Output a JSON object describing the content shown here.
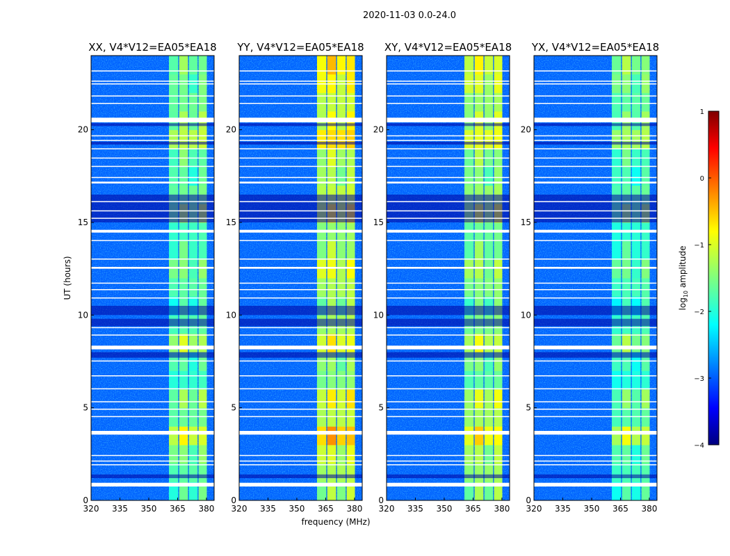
{
  "chart_data": {
    "type": "heatmap",
    "title": "2020-11-03 0.0-24.0",
    "xlabel": "frequency (MHz)",
    "ylabel": "UT (hours)",
    "xlim": [
      320,
      384
    ],
    "ylim": [
      0,
      24
    ],
    "xticks": [
      320,
      335,
      350,
      365,
      380
    ],
    "yticks": [
      0,
      5,
      10,
      15,
      20
    ],
    "colorbar": {
      "label_main": "log",
      "label_sub": "10",
      "label_rest": " amplitude",
      "range": [
        -4,
        1
      ],
      "ticks": [
        1,
        0,
        -1,
        -2,
        -3,
        -4
      ],
      "colormap": "jet"
    },
    "background_level": -2.9,
    "sub_bands_mhz": [
      [
        360.5,
        365.3
      ],
      [
        365.8,
        370.4
      ],
      [
        370.9,
        375.4
      ],
      [
        375.9,
        380.2
      ]
    ],
    "flagged_hours": [
      [
        0.75,
        0.95
      ],
      [
        1.9,
        1.95
      ],
      [
        2.1,
        2.15
      ],
      [
        2.4,
        2.45
      ],
      [
        3.55,
        3.75
      ],
      [
        4.5,
        4.55
      ],
      [
        4.9,
        4.95
      ],
      [
        5.3,
        5.35
      ],
      [
        6.0,
        6.05
      ],
      [
        6.7,
        6.75
      ],
      [
        7.5,
        7.55
      ],
      [
        8.15,
        8.35
      ],
      [
        8.9,
        8.95
      ],
      [
        9.3,
        9.35
      ],
      [
        10.9,
        10.95
      ],
      [
        11.35,
        11.4
      ],
      [
        11.7,
        11.75
      ],
      [
        12.5,
        12.6
      ],
      [
        13.0,
        13.05
      ],
      [
        14.0,
        14.05
      ],
      [
        14.45,
        14.6
      ],
      [
        15.2,
        15.25
      ],
      [
        15.6,
        15.65
      ],
      [
        16.1,
        16.15
      ],
      [
        17.1,
        17.2
      ],
      [
        17.4,
        17.45
      ],
      [
        18.0,
        18.05
      ],
      [
        18.45,
        18.5
      ],
      [
        18.95,
        19.0
      ],
      [
        19.4,
        19.45
      ],
      [
        19.65,
        19.7
      ],
      [
        20.4,
        20.65
      ],
      [
        21.4,
        21.45
      ],
      [
        21.8,
        21.85
      ],
      [
        22.45,
        22.5
      ],
      [
        22.6,
        22.65
      ],
      [
        23.15,
        23.2
      ]
    ],
    "dark_hours": [
      [
        1.2,
        1.4
      ],
      [
        7.7,
        8.0
      ],
      [
        9.4,
        9.8
      ],
      [
        10.0,
        10.5
      ],
      [
        15.0,
        16.5
      ],
      [
        19.2,
        19.35
      ],
      [
        20.2,
        20.35
      ]
    ],
    "panels": [
      {
        "title": "XX, V4*V12=EA05*EA18",
        "band_levels": [
          -1.8,
          -1.7,
          -1.6,
          -1.1,
          -1.7,
          -1.5,
          -1.9,
          -1.8,
          -1.3,
          -1.8,
          -1.9,
          -1.7,
          -1.6,
          -1.8,
          -1.9,
          -1.4,
          -1.6,
          -1.8,
          -1.7,
          -1.3,
          -1.5,
          -1.6,
          -1.7,
          -1.6
        ]
      },
      {
        "title": "YY, V4*V12=EA05*EA18",
        "band_levels": [
          -1.4,
          -1.3,
          -1.2,
          -0.6,
          -1.3,
          -1.0,
          -1.5,
          -1.5,
          -1.0,
          -1.4,
          -1.5,
          -1.3,
          -1.1,
          -1.4,
          -1.5,
          -1.0,
          -1.2,
          -1.4,
          -1.3,
          -0.8,
          -1.1,
          -1.2,
          -1.0,
          -0.8
        ]
      },
      {
        "title": "XY, V4*V12=EA05*EA18",
        "band_levels": [
          -1.5,
          -1.4,
          -1.4,
          -0.9,
          -1.4,
          -1.2,
          -1.7,
          -1.6,
          -1.2,
          -1.6,
          -1.7,
          -1.5,
          -1.4,
          -1.6,
          -1.7,
          -1.2,
          -1.4,
          -1.6,
          -1.5,
          -1.1,
          -1.3,
          -1.4,
          -1.2,
          -1.1
        ]
      },
      {
        "title": "YX, V4*V12=EA05*EA18",
        "band_levels": [
          -1.9,
          -1.8,
          -1.8,
          -1.2,
          -1.8,
          -1.6,
          -2.0,
          -1.9,
          -1.5,
          -1.9,
          -2.0,
          -1.8,
          -1.7,
          -1.9,
          -2.0,
          -1.5,
          -1.7,
          -1.9,
          -1.8,
          -1.4,
          -1.6,
          -1.7,
          -1.6,
          -1.5
        ]
      }
    ]
  }
}
